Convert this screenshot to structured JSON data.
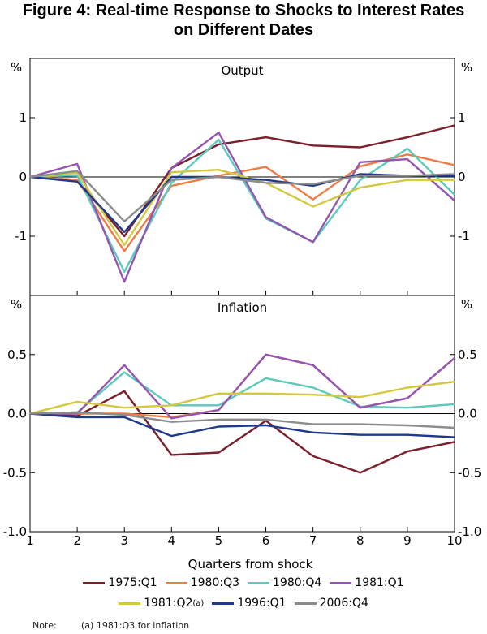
{
  "title_line1": "Figure 4: Real-time Response to Shocks to Interest Rates",
  "title_line2": "on Different Dates",
  "xlabel": "Quarters from shock",
  "note_label": "Note:",
  "note_text": "(a) 1981:Q3 for inflation",
  "legend": [
    {
      "label": "1975:Q1",
      "sup": "",
      "color": "#7a1f2b"
    },
    {
      "label": "1980:Q3",
      "sup": "",
      "color": "#f07c45"
    },
    {
      "label": "1980:Q4",
      "sup": "",
      "color": "#5dcabb"
    },
    {
      "label": "1981:Q1",
      "sup": "",
      "color": "#9455b3"
    },
    {
      "label": "1981:Q2",
      "sup": "(a)",
      "color": "#d4c83f"
    },
    {
      "label": "1996:Q1",
      "sup": "",
      "color": "#1f3a8a"
    },
    {
      "label": "2006:Q4",
      "sup": "",
      "color": "#8c8c8c"
    }
  ],
  "chart_data": [
    {
      "type": "line",
      "title": "Output",
      "unit_label": "%",
      "x": [
        1,
        2,
        3,
        4,
        5,
        6,
        7,
        8,
        9,
        10
      ],
      "xlim": [
        1,
        10
      ],
      "ylim": [
        -2,
        2
      ],
      "yticks": [
        1,
        0,
        -1
      ],
      "ytick_labels": [
        "1",
        "0",
        "-1"
      ],
      "series": [
        {
          "name": "1975:Q1",
          "color": "#7a1f2b",
          "values": [
            0,
            -0.05,
            -1.0,
            0.15,
            0.55,
            0.67,
            0.53,
            0.5,
            0.67,
            0.87
          ]
        },
        {
          "name": "1980:Q3",
          "color": "#f07c45",
          "values": [
            0,
            -0.05,
            -1.25,
            -0.15,
            0.02,
            0.17,
            -0.38,
            0.18,
            0.38,
            0.2
          ]
        },
        {
          "name": "1980:Q4",
          "color": "#5dcabb",
          "values": [
            0,
            0.03,
            -1.6,
            -0.1,
            0.63,
            -0.7,
            -1.1,
            -0.05,
            0.48,
            -0.3
          ]
        },
        {
          "name": "1981:Q1",
          "color": "#9455b3",
          "values": [
            0,
            0.22,
            -1.77,
            0.15,
            0.75,
            -0.68,
            -1.1,
            0.25,
            0.3,
            -0.4
          ]
        },
        {
          "name": "1981:Q2",
          "color": "#d4c83f",
          "values": [
            0,
            0.07,
            -1.15,
            0.08,
            0.12,
            -0.1,
            -0.5,
            -0.18,
            -0.05,
            -0.05
          ]
        },
        {
          "name": "1996:Q1",
          "color": "#1f3a8a",
          "values": [
            0,
            -0.08,
            -0.93,
            0.0,
            0.0,
            -0.05,
            -0.15,
            0.05,
            0.02,
            0.02
          ]
        },
        {
          "name": "2006:Q4",
          "color": "#8c8c8c",
          "values": [
            0,
            0.1,
            -0.75,
            -0.05,
            0.0,
            -0.1,
            -0.12,
            0.02,
            0.02,
            0.05
          ]
        }
      ]
    },
    {
      "type": "line",
      "title": "Inflation",
      "unit_label": "%",
      "x": [
        1,
        2,
        3,
        4,
        5,
        6,
        7,
        8,
        9,
        10
      ],
      "xlim": [
        1,
        10
      ],
      "ylim": [
        -1.0,
        1.0
      ],
      "yticks": [
        0.5,
        0.0,
        -0.5,
        -1.0
      ],
      "ytick_labels": [
        "0.5",
        "0.0",
        "-0.5",
        "-1.0"
      ],
      "xtick_labels": [
        "1",
        "2",
        "3",
        "4",
        "5",
        "6",
        "7",
        "8",
        "9",
        "10"
      ],
      "series": [
        {
          "name": "1975:Q1",
          "color": "#7a1f2b",
          "values": [
            0,
            -0.02,
            0.19,
            -0.35,
            -0.33,
            -0.06,
            -0.36,
            -0.5,
            -0.32,
            -0.24
          ]
        },
        {
          "name": "1980:Q3",
          "color": "#f07c45",
          "values": [
            0,
            0.0,
            0.0,
            -0.03,
            0.03,
            0.5,
            0.41,
            0.05,
            0.13,
            0.47
          ]
        },
        {
          "name": "1980:Q4",
          "color": "#5dcabb",
          "values": [
            0,
            0.01,
            0.35,
            0.07,
            0.07,
            0.3,
            0.22,
            0.06,
            0.05,
            0.08
          ]
        },
        {
          "name": "1981:Q1",
          "color": "#9455b3",
          "values": [
            0,
            0.0,
            0.41,
            -0.04,
            0.03,
            0.5,
            0.41,
            0.05,
            0.13,
            0.47
          ]
        },
        {
          "name": "1981:Q2",
          "color": "#d4c83f",
          "values": [
            0,
            0.1,
            0.05,
            0.07,
            0.17,
            0.17,
            0.16,
            0.14,
            0.22,
            0.27
          ]
        },
        {
          "name": "1996:Q1",
          "color": "#1f3a8a",
          "values": [
            0,
            -0.03,
            -0.03,
            -0.19,
            -0.11,
            -0.1,
            -0.16,
            -0.18,
            -0.18,
            -0.2
          ]
        },
        {
          "name": "2006:Q4",
          "color": "#8c8c8c",
          "values": [
            0,
            0.01,
            -0.01,
            -0.07,
            -0.05,
            -0.05,
            -0.09,
            -0.09,
            -0.1,
            -0.12
          ]
        }
      ]
    }
  ]
}
